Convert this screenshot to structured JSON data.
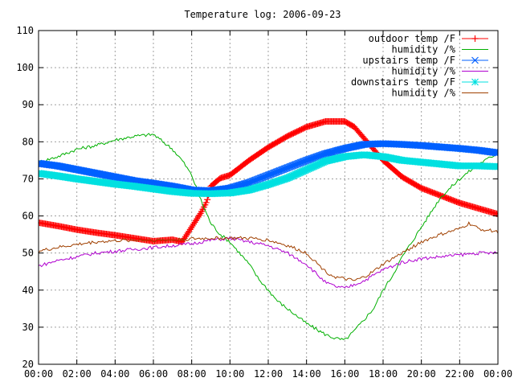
{
  "chart_data": {
    "type": "line",
    "title": "Temperature log: 2006-09-23",
    "xlabel": "",
    "ylabel": "",
    "ylim": [
      20,
      110
    ],
    "xlim": [
      0,
      24
    ],
    "grid": true,
    "legend_placement": "top-right",
    "x_tick_labels": [
      "00:00",
      "02:00",
      "04:00",
      "06:00",
      "08:00",
      "10:00",
      "12:00",
      "14:00",
      "16:00",
      "18:00",
      "20:00",
      "22:00",
      "00:00"
    ],
    "y_tick_labels": [
      "20",
      "30",
      "40",
      "50",
      "60",
      "70",
      "80",
      "90",
      "100",
      "110"
    ],
    "x_ticks": [
      0,
      2,
      4,
      6,
      8,
      10,
      12,
      14,
      16,
      18,
      20,
      22,
      24
    ],
    "y_ticks": [
      20,
      30,
      40,
      50,
      60,
      70,
      80,
      90,
      100,
      110
    ],
    "series": [
      {
        "name": "outdoor temp /F",
        "color": "#ff0000",
        "marker": "plus",
        "x": [
          0,
          1,
          2,
          3,
          4,
          5,
          6,
          7,
          7.5,
          8,
          8.5,
          8.8,
          9,
          9.5,
          10,
          11,
          12,
          13,
          14,
          15,
          16,
          16.5,
          17,
          18,
          19,
          20,
          21,
          22,
          23,
          24
        ],
        "y": [
          58.2,
          57.3,
          56.3,
          55.5,
          54.8,
          54.0,
          53.2,
          53.6,
          53.0,
          57.0,
          61.0,
          64.0,
          68.0,
          70.2,
          71.0,
          75.0,
          78.5,
          81.5,
          84.0,
          85.5,
          85.5,
          84.0,
          81.0,
          75.0,
          70.5,
          67.5,
          65.5,
          63.5,
          62.0,
          60.5
        ]
      },
      {
        "name": "humidity /%",
        "color": "#00b000",
        "marker": "none",
        "x": [
          0,
          1,
          2,
          3,
          4,
          5,
          6,
          6.5,
          7,
          7.5,
          8,
          8.5,
          9,
          9.5,
          10,
          10.5,
          11,
          11.5,
          12,
          12.5,
          13,
          13.5,
          14,
          14.5,
          15,
          15.5,
          16,
          16.5,
          17,
          17.5,
          18,
          18.5,
          19,
          20,
          21,
          22,
          23,
          24
        ],
        "y": [
          74.5,
          76.0,
          78.0,
          79.0,
          80.5,
          81.5,
          82.0,
          80.0,
          78.0,
          75.0,
          71.0,
          64.0,
          58.0,
          55.0,
          53.0,
          50.0,
          47.0,
          43.0,
          40.0,
          37.0,
          35.0,
          33.0,
          31.0,
          29.5,
          28.0,
          27.0,
          26.5,
          29.0,
          32.0,
          35.0,
          40.0,
          44.0,
          49.0,
          57.0,
          65.0,
          70.0,
          74.0,
          77.0
        ]
      },
      {
        "name": "upstairs temp /F",
        "color": "#0060ff",
        "marker": "cross",
        "x": [
          0,
          1,
          2,
          3,
          4,
          5,
          6,
          7,
          8,
          9,
          10,
          11,
          12,
          13,
          14,
          15,
          16,
          17,
          18,
          19,
          20,
          21,
          22,
          23,
          24
        ],
        "y": [
          74.2,
          73.5,
          72.5,
          71.5,
          70.5,
          69.5,
          68.8,
          68.0,
          67.0,
          66.8,
          67.5,
          69.0,
          71.0,
          73.0,
          75.0,
          76.8,
          78.2,
          79.3,
          79.5,
          79.3,
          79.0,
          78.6,
          78.2,
          77.7,
          77.0
        ]
      },
      {
        "name": "humidity /%",
        "color": "#b000d0",
        "marker": "none",
        "x": [
          0,
          1,
          2,
          3,
          4,
          5,
          6,
          7,
          8,
          9,
          10,
          11,
          12,
          13,
          14,
          15,
          15.5,
          16,
          16.5,
          17,
          17.5,
          18,
          19,
          20,
          21,
          22,
          23,
          24
        ],
        "y": [
          46.5,
          48.0,
          49.0,
          50.0,
          50.5,
          51.0,
          51.5,
          52.0,
          52.5,
          53.5,
          54.0,
          53.0,
          52.0,
          50.0,
          47.0,
          42.0,
          41.0,
          40.5,
          41.5,
          42.5,
          44.0,
          45.5,
          47.5,
          48.5,
          49.0,
          49.5,
          50.0,
          50.0
        ]
      },
      {
        "name": "downstairs temp /F",
        "color": "#00e0e0",
        "marker": "star",
        "x": [
          0,
          1,
          2,
          3,
          4,
          5,
          6,
          7,
          8,
          9,
          10,
          11,
          12,
          13,
          14,
          15,
          16,
          17,
          18,
          19,
          20,
          21,
          22,
          23,
          24
        ],
        "y": [
          71.5,
          70.8,
          70.0,
          69.3,
          68.6,
          68.0,
          67.3,
          66.6,
          66.1,
          66.0,
          66.2,
          67.0,
          68.5,
          70.2,
          72.5,
          74.8,
          76.0,
          76.5,
          76.0,
          75.0,
          74.5,
          74.0,
          73.5,
          73.5,
          73.3
        ]
      },
      {
        "name": "humidity /%",
        "color": "#a04000",
        "marker": "none",
        "x": [
          0,
          1,
          2,
          3,
          4,
          5,
          6,
          7,
          8,
          9,
          10,
          11,
          12,
          13,
          14,
          15,
          15.5,
          16,
          16.5,
          17,
          17.5,
          18,
          19,
          20,
          21,
          22,
          22.5,
          23,
          24
        ],
        "y": [
          50.5,
          51.5,
          52.3,
          53.0,
          53.3,
          53.5,
          53.5,
          53.5,
          53.8,
          54.0,
          54.0,
          54.0,
          53.5,
          52.0,
          50.0,
          45.0,
          43.5,
          43.0,
          42.5,
          43.5,
          45.0,
          47.0,
          50.0,
          53.0,
          55.0,
          56.5,
          58.0,
          56.5,
          55.8
        ]
      }
    ]
  }
}
